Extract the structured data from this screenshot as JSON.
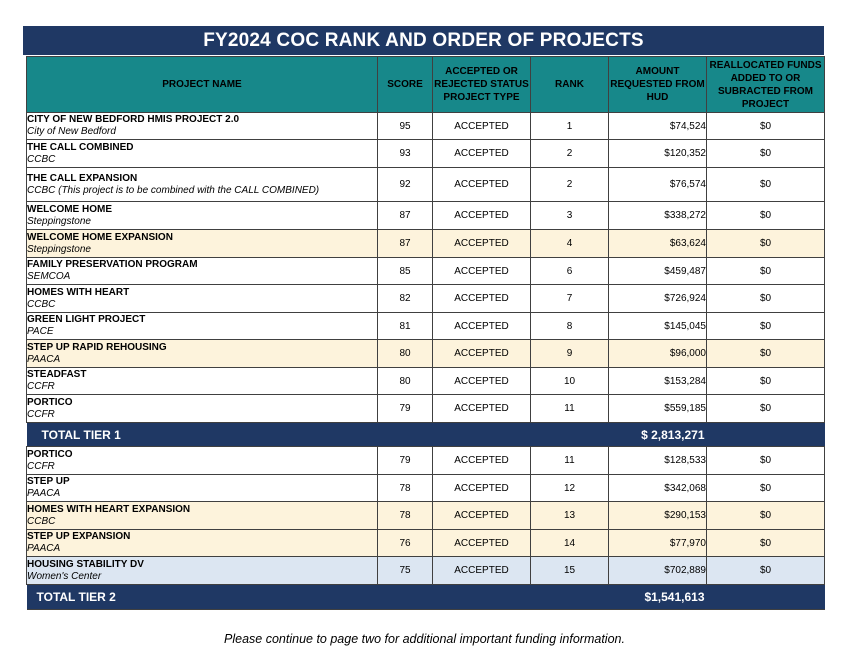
{
  "title": "FY2024 COC RANK AND ORDER OF PROJECTS",
  "headers": {
    "name": "PROJECT NAME",
    "score": "SCORE",
    "status": "ACCEPTED OR REJECTED STATUS PROJECT TYPE",
    "rank": "RANK",
    "amount": "AMOUNT REQUESTED FROM HUD",
    "realloc": "REALLOCATED FUNDS ADDED TO OR SUBRACTED FROM PROJECT"
  },
  "tier1": [
    {
      "name": "CITY OF NEW BEDFORD HMIS PROJECT 2.0",
      "agency": "City of New Bedford",
      "score": "95",
      "status": "ACCEPTED",
      "rank": "1",
      "amount": "$74,524",
      "realloc": "$0"
    },
    {
      "name": "THE CALL COMBINED",
      "agency": "CCBC",
      "score": "93",
      "status": "ACCEPTED",
      "rank": "2",
      "amount": "$120,352",
      "realloc": "$0"
    },
    {
      "name": "THE CALL EXPANSION",
      "agency": "CCBC (This project is to be combined with the CALL COMBINED)",
      "score": "92",
      "status": "ACCEPTED",
      "rank": "2",
      "amount": "$76,574",
      "realloc": "$0"
    },
    {
      "name": "WELCOME HOME",
      "agency": "Steppingstone",
      "score": "87",
      "status": "ACCEPTED",
      "rank": "3",
      "amount": "$338,272",
      "realloc": "$0"
    },
    {
      "name": "WELCOME HOME EXPANSION",
      "agency": "Steppingstone",
      "score": "87",
      "status": "ACCEPTED",
      "rank": "4",
      "amount": "$63,624",
      "realloc": "$0"
    },
    {
      "name": "FAMILY PRESERVATION PROGRAM",
      "agency": "SEMCOA",
      "score": "85",
      "status": "ACCEPTED",
      "rank": "6",
      "amount": "$459,487",
      "realloc": "$0"
    },
    {
      "name": "HOMES WITH HEART",
      "agency": "CCBC",
      "score": "82",
      "status": "ACCEPTED",
      "rank": "7",
      "amount": "$726,924",
      "realloc": "$0"
    },
    {
      "name": "GREEN LIGHT PROJECT",
      "agency": "PACE",
      "score": "81",
      "status": "ACCEPTED",
      "rank": "8",
      "amount": "$145,045",
      "realloc": "$0"
    },
    {
      "name": "STEP UP RAPID REHOUSING",
      "agency": "PAACA",
      "score": "80",
      "status": "ACCEPTED",
      "rank": "9",
      "amount": "$96,000",
      "realloc": "$0"
    },
    {
      "name": "STEADFAST",
      "agency": "CCFR",
      "score": "80",
      "status": "ACCEPTED",
      "rank": "10",
      "amount": "$153,284",
      "realloc": "$0"
    },
    {
      "name": "PORTICO",
      "agency": "CCFR",
      "score": "79",
      "status": "ACCEPTED",
      "rank": "11",
      "amount": "$559,185",
      "realloc": "$0"
    }
  ],
  "total1": {
    "label": "TOTAL TIER 1",
    "amount": "$ 2,813,271"
  },
  "tier2": [
    {
      "name": "PORTICO",
      "agency": "CCFR",
      "score": "79",
      "status": "ACCEPTED",
      "rank": "11",
      "amount": "$128,533",
      "realloc": "$0"
    },
    {
      "name": "STEP UP",
      "agency": "PAACA",
      "score": "78",
      "status": "ACCEPTED",
      "rank": "12",
      "amount": "$342,068",
      "realloc": "$0"
    },
    {
      "name": "HOMES WITH HEART EXPANSION",
      "agency": "CCBC",
      "score": "78",
      "status": "ACCEPTED",
      "rank": "13",
      "amount": "$290,153",
      "realloc": "$0"
    },
    {
      "name": "STEP UP EXPANSION",
      "agency": "PAACA",
      "score": "76",
      "status": "ACCEPTED",
      "rank": "14",
      "amount": "$77,970",
      "realloc": "$0"
    },
    {
      "name": "HOUSING STABILITY DV",
      "agency": "Women's Center",
      "score": "75",
      "status": "ACCEPTED",
      "rank": "15",
      "amount": "$702,889",
      "realloc": "$0"
    }
  ],
  "total2": {
    "label": "TOTAL TIER 2",
    "amount": "$1,541,613"
  },
  "footer": "Please continue to page two  for additional important funding information."
}
